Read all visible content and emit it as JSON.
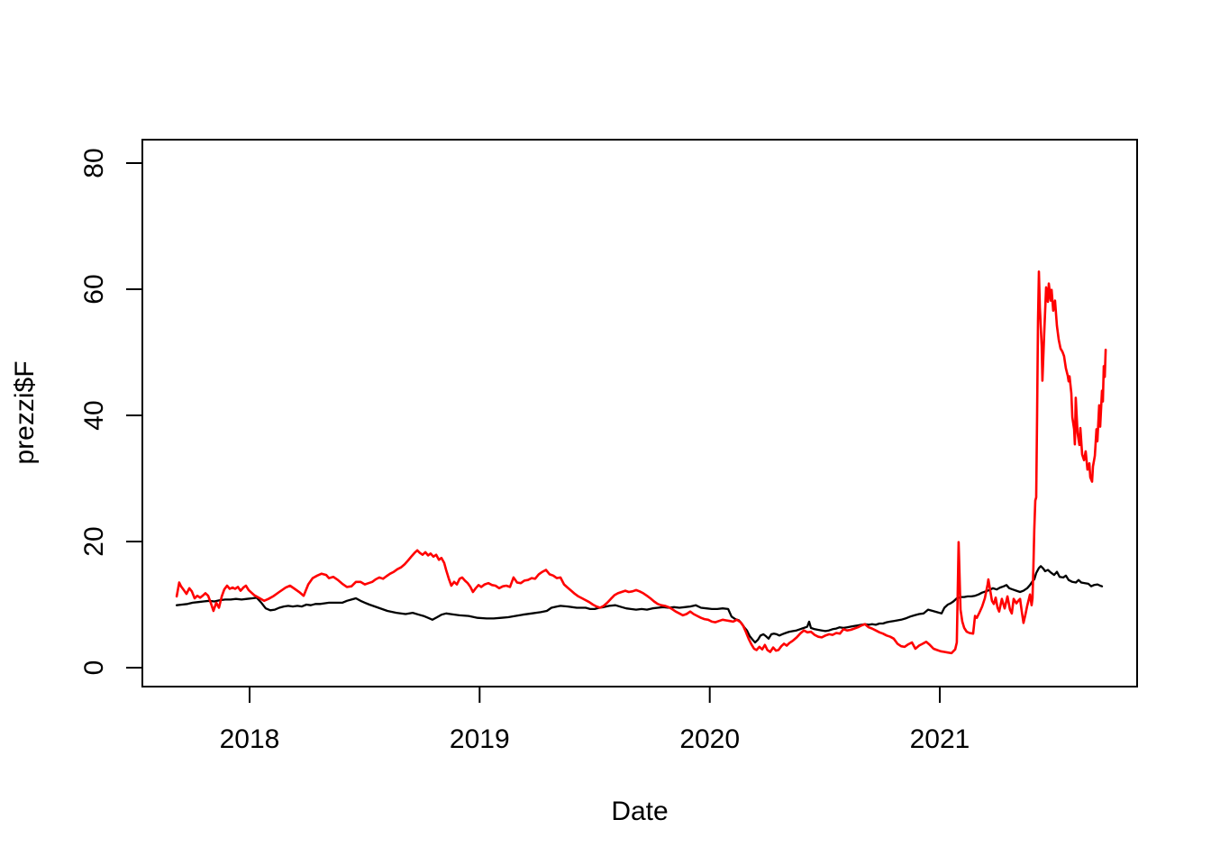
{
  "figure": {
    "background": "#ffffff",
    "axis_color": "#000000"
  },
  "chart_data": {
    "type": "line",
    "xlabel": "Date",
    "ylabel": "prezzi$F",
    "grid": false,
    "legend": null,
    "x_axis": {
      "ticks": [
        2018,
        2019,
        2020,
        2021
      ],
      "tick_labels": [
        "2018",
        "2019",
        "2020",
        "2021"
      ],
      "range": [
        2017.534,
        2021.858
      ]
    },
    "y_axis": {
      "ticks": [
        0,
        20,
        40,
        60,
        80
      ],
      "tick_labels": [
        "0",
        "20",
        "40",
        "60",
        "80"
      ],
      "range": [
        -3.0,
        83.7
      ]
    },
    "series": [
      {
        "name": "black-series",
        "color": "#000000",
        "x": [
          2017.683,
          2017.706,
          2017.73,
          2017.753,
          2017.777,
          2017.8,
          2017.824,
          2017.847,
          2017.871,
          2017.894,
          2017.918,
          2017.941,
          2017.965,
          2017.988,
          2018.012,
          2018.031,
          2018.051,
          2018.07,
          2018.09,
          2018.11,
          2018.129,
          2018.149,
          2018.168,
          2018.188,
          2018.208,
          2018.227,
          2018.247,
          2018.266,
          2018.286,
          2018.306,
          2018.325,
          2018.345,
          2018.364,
          2018.384,
          2018.403,
          2018.423,
          2018.443,
          2018.462,
          2018.482,
          2018.501,
          2018.521,
          2018.56,
          2018.599,
          2018.638,
          2018.678,
          2018.709,
          2018.736,
          2018.756,
          2018.776,
          2018.795,
          2018.815,
          2018.834,
          2018.854,
          2018.873,
          2018.913,
          2018.952,
          2018.991,
          2019.03,
          2019.061,
          2019.093,
          2019.124,
          2019.155,
          2019.187,
          2019.226,
          2019.265,
          2019.292,
          2019.312,
          2019.336,
          2019.351,
          2019.383,
          2019.422,
          2019.461,
          2019.48,
          2019.5,
          2019.52,
          2019.539,
          2019.563,
          2019.59,
          2019.618,
          2019.637,
          2019.657,
          2019.68,
          2019.704,
          2019.727,
          2019.751,
          2019.774,
          2019.798,
          2019.821,
          2019.845,
          2019.868,
          2019.892,
          2019.915,
          2019.939,
          2019.962,
          2019.986,
          2020.009,
          2020.033,
          2020.056,
          2020.08,
          2020.095,
          2020.111,
          2020.127,
          2020.139,
          2020.15,
          2020.162,
          2020.174,
          2020.185,
          2020.197,
          2020.209,
          2020.221,
          2020.233,
          2020.244,
          2020.256,
          2020.268,
          2020.279,
          2020.291,
          2020.303,
          2020.315,
          2020.33,
          2020.346,
          2020.362,
          2020.377,
          2020.393,
          2020.409,
          2020.424,
          2020.432,
          2020.44,
          2020.456,
          2020.471,
          2020.487,
          2020.503,
          2020.518,
          2020.534,
          2020.55,
          2020.565,
          2020.581,
          2020.597,
          2020.612,
          2020.628,
          2020.644,
          2020.659,
          2020.675,
          2020.691,
          2020.706,
          2020.722,
          2020.738,
          2020.753,
          2020.769,
          2020.784,
          2020.8,
          2020.816,
          2020.832,
          2020.851,
          2020.871,
          2020.89,
          2020.91,
          2020.93,
          2020.949,
          2020.969,
          2020.988,
          2021.008,
          2021.02,
          2021.035,
          2021.047,
          2021.059,
          2021.074,
          2021.09,
          2021.106,
          2021.121,
          2021.137,
          2021.153,
          2021.168,
          2021.184,
          2021.2,
          2021.215,
          2021.231,
          2021.247,
          2021.262,
          2021.278,
          2021.29,
          2021.302,
          2021.317,
          2021.333,
          2021.349,
          2021.364,
          2021.38,
          2021.392,
          2021.403,
          2021.411,
          2021.419,
          2021.431,
          2021.439,
          2021.45,
          2021.458,
          2021.47,
          2021.482,
          2021.497,
          2021.509,
          2021.521,
          2021.537,
          2021.548,
          2021.56,
          2021.576,
          2021.592,
          2021.603,
          2021.615,
          2021.631,
          2021.646,
          2021.658,
          2021.67,
          2021.686,
          2021.697,
          2021.705
        ],
        "y": [
          9.9,
          10.0,
          10.1,
          10.3,
          10.4,
          10.5,
          10.6,
          10.5,
          10.7,
          10.8,
          10.8,
          10.9,
          10.8,
          10.9,
          11.0,
          11.1,
          10.3,
          9.4,
          9.1,
          9.2,
          9.5,
          9.7,
          9.8,
          9.7,
          9.8,
          9.7,
          10.0,
          9.9,
          10.1,
          10.1,
          10.2,
          10.3,
          10.3,
          10.3,
          10.3,
          10.6,
          10.8,
          11.0,
          10.6,
          10.3,
          10.0,
          9.5,
          9.0,
          8.7,
          8.5,
          8.7,
          8.4,
          8.2,
          7.9,
          7.6,
          8.0,
          8.4,
          8.6,
          8.5,
          8.3,
          8.2,
          7.9,
          7.8,
          7.8,
          7.9,
          8.0,
          8.2,
          8.4,
          8.6,
          8.8,
          9.0,
          9.5,
          9.7,
          9.8,
          9.7,
          9.5,
          9.5,
          9.3,
          9.3,
          9.5,
          9.6,
          9.8,
          9.9,
          9.6,
          9.4,
          9.3,
          9.2,
          9.3,
          9.2,
          9.4,
          9.5,
          9.6,
          9.5,
          9.6,
          9.5,
          9.6,
          9.7,
          9.9,
          9.5,
          9.4,
          9.3,
          9.3,
          9.4,
          9.3,
          8.1,
          7.7,
          7.5,
          7.0,
          6.4,
          5.9,
          5.0,
          4.5,
          4.0,
          4.4,
          5.1,
          5.3,
          5.0,
          4.6,
          5.3,
          5.4,
          5.3,
          5.1,
          5.3,
          5.5,
          5.7,
          5.8,
          5.9,
          6.1,
          6.3,
          6.5,
          7.3,
          6.3,
          6.1,
          6.0,
          5.9,
          5.8,
          5.9,
          6.1,
          6.2,
          6.4,
          6.3,
          6.4,
          6.5,
          6.6,
          6.7,
          6.8,
          6.9,
          6.8,
          6.9,
          6.8,
          7.0,
          7.0,
          7.2,
          7.3,
          7.4,
          7.5,
          7.6,
          7.8,
          8.1,
          8.3,
          8.5,
          8.6,
          9.2,
          9.0,
          8.8,
          8.6,
          9.5,
          10.0,
          10.2,
          10.5,
          11.0,
          11.2,
          11.2,
          11.3,
          11.3,
          11.4,
          11.6,
          11.9,
          12.1,
          12.3,
          12.6,
          12.4,
          12.7,
          12.9,
          13.1,
          12.6,
          12.4,
          12.2,
          12.0,
          12.2,
          12.6,
          13.1,
          13.7,
          14.0,
          15.0,
          15.8,
          16.1,
          15.7,
          15.3,
          15.5,
          15.1,
          14.7,
          15.2,
          14.4,
          14.3,
          14.6,
          13.9,
          13.6,
          13.5,
          13.9,
          13.5,
          13.4,
          13.3,
          12.9,
          13.1,
          13.2,
          13.0,
          12.9
        ]
      },
      {
        "name": "red-series",
        "color": "#FF0000",
        "x": [
          2017.683,
          2017.694,
          2017.702,
          2017.714,
          2017.726,
          2017.738,
          2017.749,
          2017.761,
          2017.773,
          2017.785,
          2017.796,
          2017.808,
          2017.82,
          2017.832,
          2017.843,
          2017.855,
          2017.867,
          2017.879,
          2017.89,
          2017.902,
          2017.914,
          2017.926,
          2017.937,
          2017.949,
          2017.961,
          2017.973,
          2017.984,
          2017.996,
          2018.008,
          2018.02,
          2018.039,
          2018.063,
          2018.082,
          2018.102,
          2018.129,
          2018.157,
          2018.176,
          2018.196,
          2018.219,
          2018.235,
          2018.255,
          2018.274,
          2018.294,
          2018.313,
          2018.333,
          2018.345,
          2018.364,
          2018.384,
          2018.403,
          2018.423,
          2018.443,
          2018.462,
          2018.482,
          2018.501,
          2018.517,
          2018.533,
          2018.548,
          2018.564,
          2018.58,
          2018.595,
          2018.611,
          2018.627,
          2018.642,
          2018.658,
          2018.674,
          2018.689,
          2018.705,
          2018.717,
          2018.729,
          2018.74,
          2018.752,
          2018.764,
          2018.776,
          2018.787,
          2018.799,
          2018.811,
          2018.823,
          2018.834,
          2018.846,
          2018.854,
          2018.866,
          2018.877,
          2018.889,
          2018.901,
          2018.913,
          2018.924,
          2018.936,
          2018.948,
          2018.96,
          2018.971,
          2018.983,
          2018.995,
          2019.007,
          2019.022,
          2019.038,
          2019.054,
          2019.069,
          2019.085,
          2019.101,
          2019.116,
          2019.132,
          2019.147,
          2019.163,
          2019.179,
          2019.194,
          2019.21,
          2019.226,
          2019.241,
          2019.257,
          2019.273,
          2019.288,
          2019.304,
          2019.32,
          2019.335,
          2019.351,
          2019.367,
          2019.382,
          2019.398,
          2019.414,
          2019.429,
          2019.445,
          2019.461,
          2019.476,
          2019.492,
          2019.508,
          2019.523,
          2019.539,
          2019.555,
          2019.57,
          2019.586,
          2019.601,
          2019.617,
          2019.633,
          2019.648,
          2019.664,
          2019.68,
          2019.695,
          2019.711,
          2019.727,
          2019.742,
          2019.758,
          2019.774,
          2019.789,
          2019.805,
          2019.821,
          2019.836,
          2019.852,
          2019.868,
          2019.883,
          2019.899,
          2019.915,
          2019.93,
          2019.946,
          2019.962,
          2019.977,
          2019.993,
          2020.009,
          2020.024,
          2020.04,
          2020.056,
          2020.071,
          2020.087,
          2020.102,
          2020.118,
          2020.134,
          2020.146,
          2020.157,
          2020.169,
          2020.181,
          2020.193,
          2020.204,
          2020.216,
          2020.228,
          2020.24,
          2020.251,
          2020.263,
          2020.276,
          2020.288,
          2020.299,
          2020.311,
          2020.323,
          2020.335,
          2020.346,
          2020.362,
          2020.378,
          2020.393,
          2020.409,
          2020.425,
          2020.44,
          2020.456,
          2020.472,
          2020.487,
          2020.503,
          2020.519,
          2020.534,
          2020.55,
          2020.566,
          2020.581,
          2020.597,
          2020.613,
          2020.628,
          2020.644,
          2020.66,
          2020.675,
          2020.691,
          2020.706,
          2020.722,
          2020.738,
          2020.753,
          2020.769,
          2020.785,
          2020.8,
          2020.816,
          2020.832,
          2020.847,
          2020.863,
          2020.879,
          2020.894,
          2020.91,
          2020.926,
          2020.941,
          2020.957,
          2020.973,
          2020.988,
          2021.004,
          2021.02,
          2021.035,
          2021.051,
          2021.067,
          2021.074,
          2021.082,
          2021.09,
          2021.098,
          2021.106,
          2021.117,
          2021.129,
          2021.145,
          2021.153,
          2021.161,
          2021.172,
          2021.184,
          2021.196,
          2021.208,
          2021.211,
          2021.219,
          2021.227,
          2021.235,
          2021.243,
          2021.251,
          2021.258,
          2021.27,
          2021.282,
          2021.294,
          2021.305,
          2021.313,
          2021.321,
          2021.333,
          2021.341,
          2021.349,
          2021.356,
          2021.364,
          2021.372,
          2021.38,
          2021.392,
          2021.399,
          2021.403,
          2021.407,
          2021.411,
          2021.415,
          2021.419,
          2021.423,
          2021.427,
          2021.431,
          2021.435,
          2021.443,
          2021.446,
          2021.454,
          2021.462,
          2021.47,
          2021.474,
          2021.482,
          2021.486,
          2021.493,
          2021.501,
          2021.509,
          2021.517,
          2021.525,
          2021.533,
          2021.54,
          2021.548,
          2021.556,
          2021.56,
          2021.564,
          2021.572,
          2021.576,
          2021.584,
          2021.587,
          2021.591,
          2021.599,
          2021.607,
          2021.611,
          2021.619,
          2021.627,
          2021.634,
          2021.642,
          2021.65,
          2021.654,
          2021.662,
          2021.666,
          2021.674,
          2021.681,
          2021.685,
          2021.693,
          2021.697,
          2021.705,
          2021.709,
          2021.713,
          2021.717,
          2021.721
        ],
        "y": [
          11.3,
          13.5,
          12.9,
          12.3,
          11.7,
          12.6,
          12.1,
          11.0,
          11.4,
          11.1,
          11.4,
          11.8,
          11.4,
          10.2,
          9.0,
          10.3,
          9.5,
          11.3,
          12.4,
          13.0,
          12.5,
          12.7,
          12.5,
          12.8,
          12.2,
          12.7,
          13.0,
          12.3,
          11.9,
          11.5,
          11.1,
          10.6,
          10.9,
          11.3,
          12.0,
          12.7,
          13.0,
          12.5,
          11.9,
          11.4,
          13.2,
          14.2,
          14.6,
          14.9,
          14.7,
          14.2,
          14.4,
          13.9,
          13.3,
          12.8,
          12.9,
          13.6,
          13.6,
          13.2,
          13.4,
          13.6,
          14.0,
          14.3,
          14.1,
          14.5,
          14.9,
          15.2,
          15.6,
          15.9,
          16.4,
          17.0,
          17.7,
          18.2,
          18.6,
          18.2,
          17.9,
          18.3,
          17.8,
          18.1,
          17.6,
          17.9,
          17.1,
          17.4,
          16.6,
          15.5,
          14.1,
          13.0,
          13.6,
          13.2,
          14.1,
          14.3,
          13.8,
          13.4,
          12.8,
          12.0,
          12.6,
          13.1,
          12.8,
          13.2,
          13.4,
          13.1,
          13.0,
          12.6,
          12.9,
          13.0,
          12.8,
          14.3,
          13.5,
          13.4,
          13.8,
          13.9,
          14.2,
          14.1,
          14.8,
          15.2,
          15.5,
          14.8,
          14.6,
          14.2,
          14.3,
          13.2,
          12.7,
          12.2,
          11.7,
          11.3,
          11.0,
          10.7,
          10.4,
          10.0,
          9.7,
          9.5,
          9.8,
          10.3,
          10.9,
          11.5,
          11.8,
          12.0,
          12.2,
          12.0,
          12.1,
          12.3,
          12.1,
          11.8,
          11.4,
          11.0,
          10.5,
          10.1,
          9.9,
          9.8,
          9.6,
          9.3,
          8.9,
          8.6,
          8.3,
          8.5,
          8.9,
          8.5,
          8.2,
          7.9,
          7.7,
          7.6,
          7.3,
          7.2,
          7.4,
          7.6,
          7.5,
          7.4,
          7.3,
          7.6,
          7.2,
          6.6,
          5.7,
          4.6,
          3.7,
          3.0,
          2.8,
          3.3,
          2.9,
          3.6,
          2.8,
          2.5,
          3.2,
          2.7,
          2.8,
          3.4,
          3.8,
          3.5,
          3.9,
          4.3,
          4.8,
          5.4,
          5.9,
          5.6,
          5.7,
          5.2,
          4.9,
          4.8,
          5.1,
          5.3,
          5.2,
          5.5,
          5.4,
          6.1,
          5.9,
          6.0,
          6.2,
          6.4,
          6.7,
          6.9,
          6.4,
          6.2,
          5.9,
          5.6,
          5.4,
          5.1,
          4.9,
          4.6,
          3.8,
          3.4,
          3.3,
          3.7,
          4.0,
          3.0,
          3.5,
          3.8,
          4.1,
          3.6,
          3.0,
          2.8,
          2.6,
          2.5,
          2.4,
          2.3,
          2.9,
          4.0,
          19.9,
          9.2,
          7.3,
          6.3,
          5.7,
          5.5,
          5.4,
          8.2,
          7.9,
          8.7,
          9.7,
          11.0,
          13.2,
          14.0,
          12.3,
          10.6,
          10.1,
          11.1,
          9.5,
          8.9,
          10.9,
          9.4,
          11.3,
          9.2,
          8.6,
          10.9,
          10.2,
          10.6,
          10.9,
          9.0,
          7.1,
          8.4,
          9.8,
          11.6,
          9.9,
          11.0,
          16.0,
          22.0,
          26.5,
          27.0,
          40.0,
          55.0,
          62.8,
          57.0,
          51.0,
          45.5,
          53.0,
          60.3,
          58.0,
          60.9,
          58.2,
          59.9,
          56.6,
          58.2,
          54.2,
          52.0,
          50.6,
          50.1,
          49.4,
          47.5,
          46.3,
          45.4,
          46.2,
          43.5,
          39.7,
          37.8,
          35.4,
          42.8,
          37.2,
          35.3,
          38.0,
          33.8,
          32.9,
          34.3,
          31.4,
          32.4,
          30.2,
          29.5,
          31.9,
          33.6,
          37.8,
          35.9,
          41.6,
          38.2,
          43.9,
          42.2,
          47.8,
          46.1,
          50.4
        ]
      }
    ]
  }
}
